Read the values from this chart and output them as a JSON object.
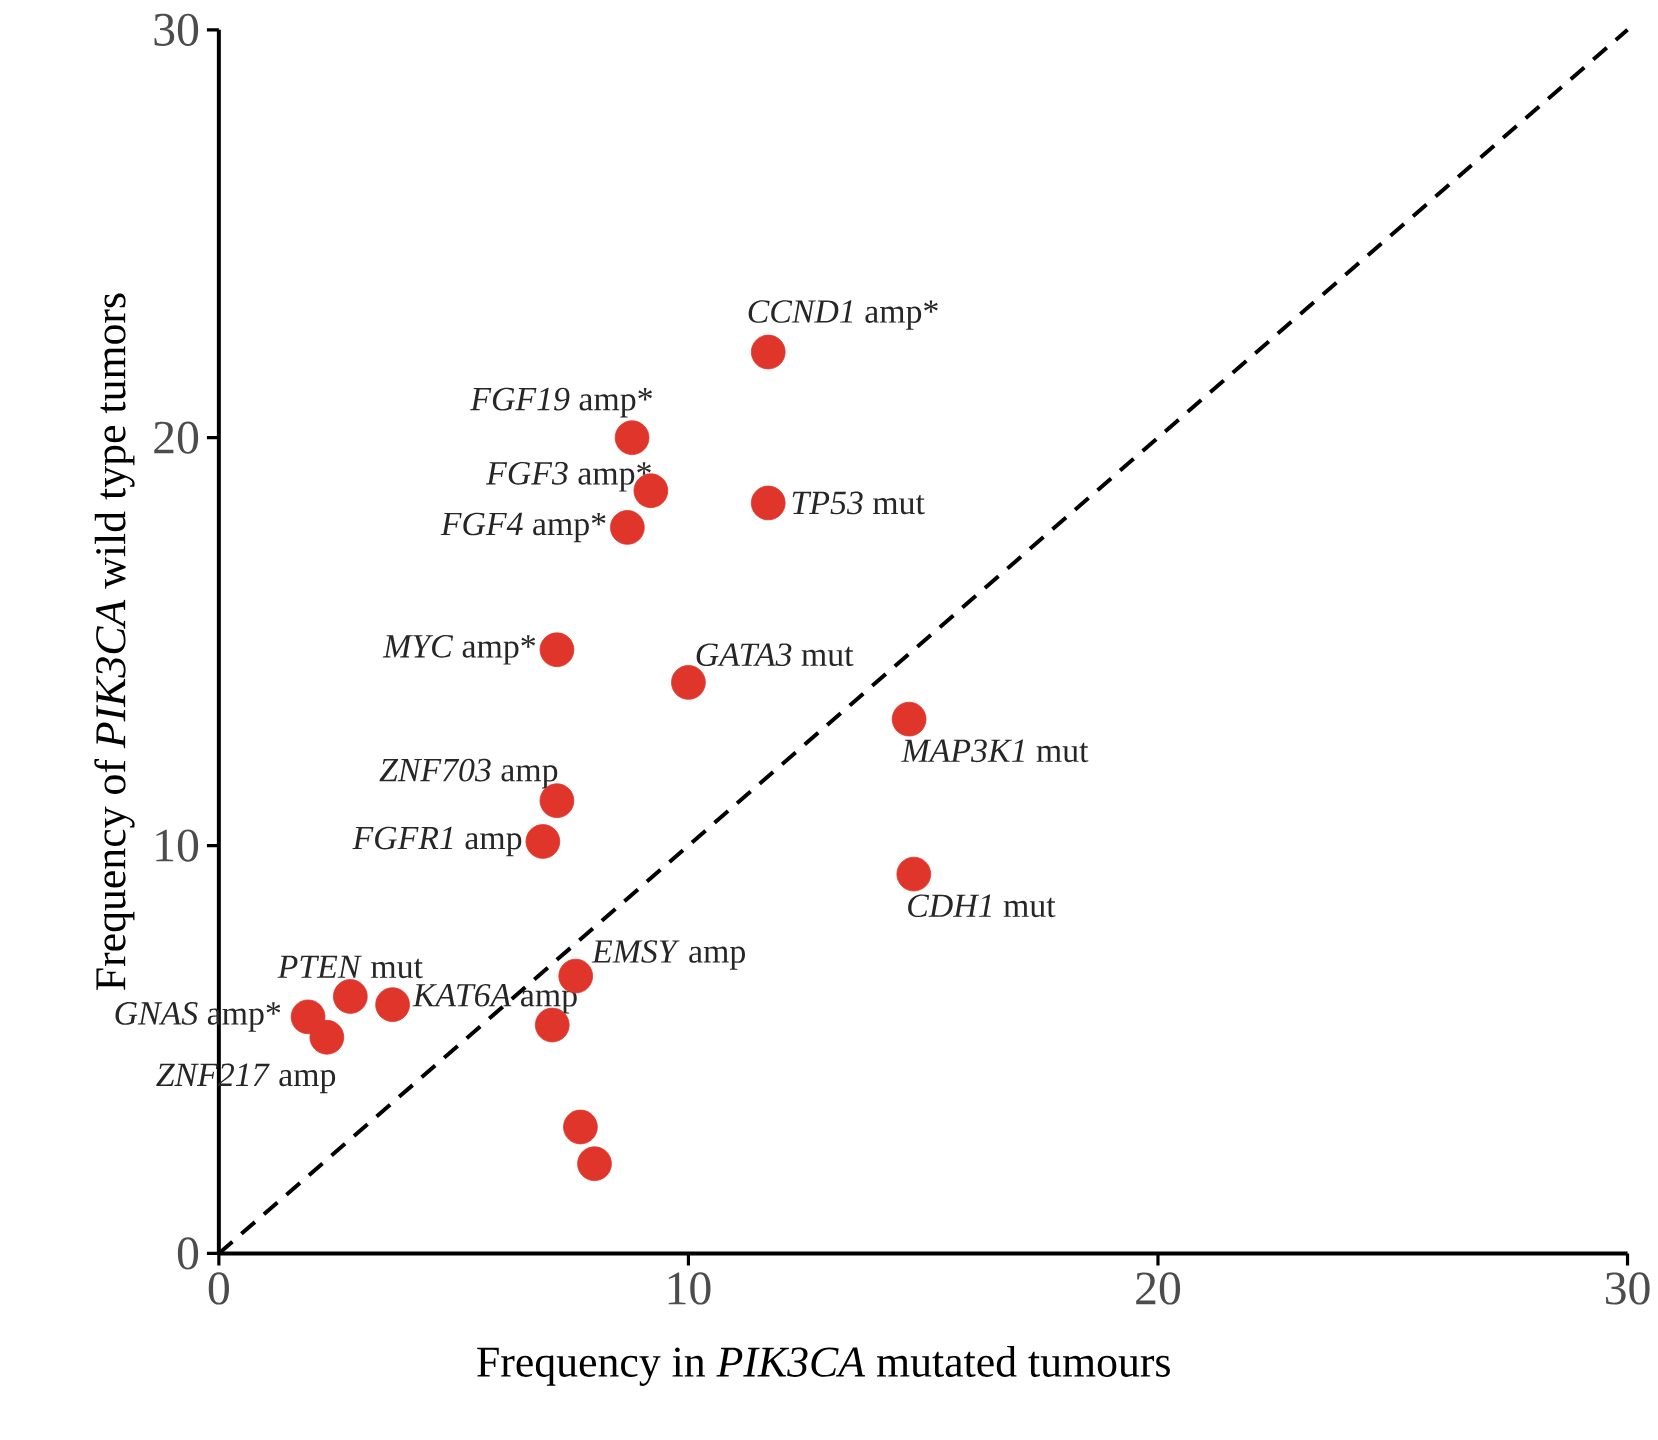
{
  "chart_data": {
    "type": "scatter",
    "xlabel": "Frequency in *PIK3CA* mutated tumours",
    "ylabel": "Frequency of *PIK3CA* wild type tumors",
    "xlim": [
      0,
      30
    ],
    "ylim": [
      0,
      30
    ],
    "xticks": [
      0,
      10,
      20,
      30
    ],
    "yticks": [
      0,
      10,
      20,
      30
    ],
    "grid": false,
    "series": [
      {
        "color": "#e0352b",
        "marker": "circle",
        "x": [
          11.7,
          8.8,
          9.2,
          8.7,
          11.7,
          7.2,
          10.0,
          14.7,
          7.2,
          6.9,
          14.8,
          7.6,
          3.7,
          2.8,
          1.9,
          2.3,
          7.1,
          7.7,
          8.0
        ],
        "values": [
          22.1,
          20.0,
          18.7,
          17.8,
          18.4,
          14.8,
          14.0,
          13.1,
          11.1,
          10.1,
          9.3,
          6.8,
          6.1,
          6.3,
          5.8,
          5.3,
          5.6,
          3.1,
          2.2
        ]
      },
      {
        "type": "line",
        "color": "#000000",
        "marker": "none",
        "line_style": "dashed",
        "x": [
          0,
          30
        ],
        "values": [
          0,
          30
        ]
      }
    ],
    "annotations": [
      {
        "text": "*CCND1* amp*",
        "x": 11.7,
        "y": 22.1
      },
      {
        "text": "*FGF19* amp*",
        "x": 8.8,
        "y": 20.0
      },
      {
        "text": "*FGF3* amp*",
        "x": 9.2,
        "y": 18.7
      },
      {
        "text": "*FGF4* amp*",
        "x": 8.7,
        "y": 17.8
      },
      {
        "text": "*TP53* mut",
        "x": 11.7,
        "y": 18.4
      },
      {
        "text": "*MYC* amp*",
        "x": 7.2,
        "y": 14.8
      },
      {
        "text": "*GATA3* mut",
        "x": 10.0,
        "y": 14.0
      },
      {
        "text": "*MAP3K1* mut",
        "x": 14.7,
        "y": 13.1
      },
      {
        "text": "*ZNF703* amp",
        "x": 7.2,
        "y": 11.1
      },
      {
        "text": "*FGFR1* amp",
        "x": 6.9,
        "y": 10.1
      },
      {
        "text": "*CDH1* mut",
        "x": 14.8,
        "y": 9.3
      },
      {
        "text": "*EMSY* amp",
        "x": 7.6,
        "y": 6.8
      },
      {
        "text": "*KAT6A* amp",
        "x": 3.7,
        "y": 6.1
      },
      {
        "text": "*PTEN* mut",
        "x": 2.8,
        "y": 6.3
      },
      {
        "text": "*GNAS* amp*",
        "x": 1.9,
        "y": 5.8
      },
      {
        "text": "*ZNF217* amp",
        "x": 2.3,
        "y": 5.3
      }
    ]
  }
}
